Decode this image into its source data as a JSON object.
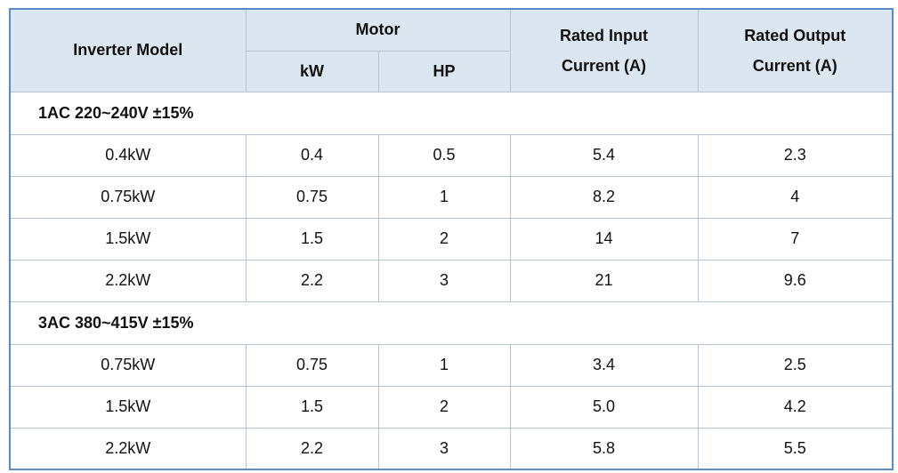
{
  "header": {
    "model": "Inverter Model",
    "motor": "Motor",
    "kw": "kW",
    "hp": "HP",
    "input": [
      "Rated Input",
      "Current (A)"
    ],
    "output": [
      "Rated Output",
      "Current (A)"
    ]
  },
  "sections": [
    {
      "title": "1AC 220~240V ±15%",
      "rows": [
        [
          "0.4kW",
          "0.4",
          "0.5",
          "5.4",
          "2.3"
        ],
        [
          "0.75kW",
          "0.75",
          "1",
          "8.2",
          "4"
        ],
        [
          "1.5kW",
          "1.5",
          "2",
          "14",
          "7"
        ],
        [
          "2.2kW",
          "2.2",
          "3",
          "21",
          "9.6"
        ]
      ]
    },
    {
      "title": "3AC 380~415V ±15%",
      "rows": [
        [
          "0.75kW",
          "0.75",
          "1",
          "3.4",
          "2.5"
        ],
        [
          "1.5kW",
          "1.5",
          "2",
          "5.0",
          "4.2"
        ],
        [
          "2.2kW",
          "2.2",
          "3",
          "5.8",
          "5.5"
        ]
      ]
    }
  ]
}
